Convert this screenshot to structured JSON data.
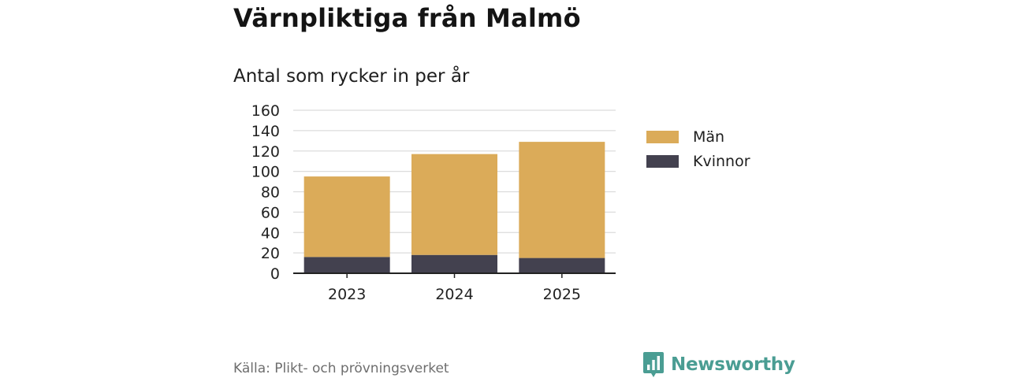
{
  "header": {
    "title": "Värnpliktiga från Malmö",
    "subtitle": "Antal som rycker in per år"
  },
  "chart_data": {
    "type": "bar",
    "stacked": true,
    "categories": [
      "2023",
      "2024",
      "2025"
    ],
    "series": [
      {
        "name": "Kvinnor",
        "values": [
          16,
          18,
          15
        ],
        "color": "#43414f"
      },
      {
        "name": "Män",
        "values": [
          79,
          99,
          114
        ],
        "color": "#dbab59"
      }
    ],
    "ylim": [
      0,
      160
    ],
    "yticks": [
      0,
      20,
      40,
      60,
      80,
      100,
      120,
      140,
      160
    ],
    "grid": true,
    "legend_position": "right"
  },
  "legend": {
    "items": [
      {
        "label": "Män",
        "color": "#dbab59"
      },
      {
        "label": "Kvinnor",
        "color": "#43414f"
      }
    ]
  },
  "footer": {
    "source": "Källa: Plikt- och prövningsverket",
    "brand": "Newsworthy",
    "brand_color": "#4a9d93"
  }
}
